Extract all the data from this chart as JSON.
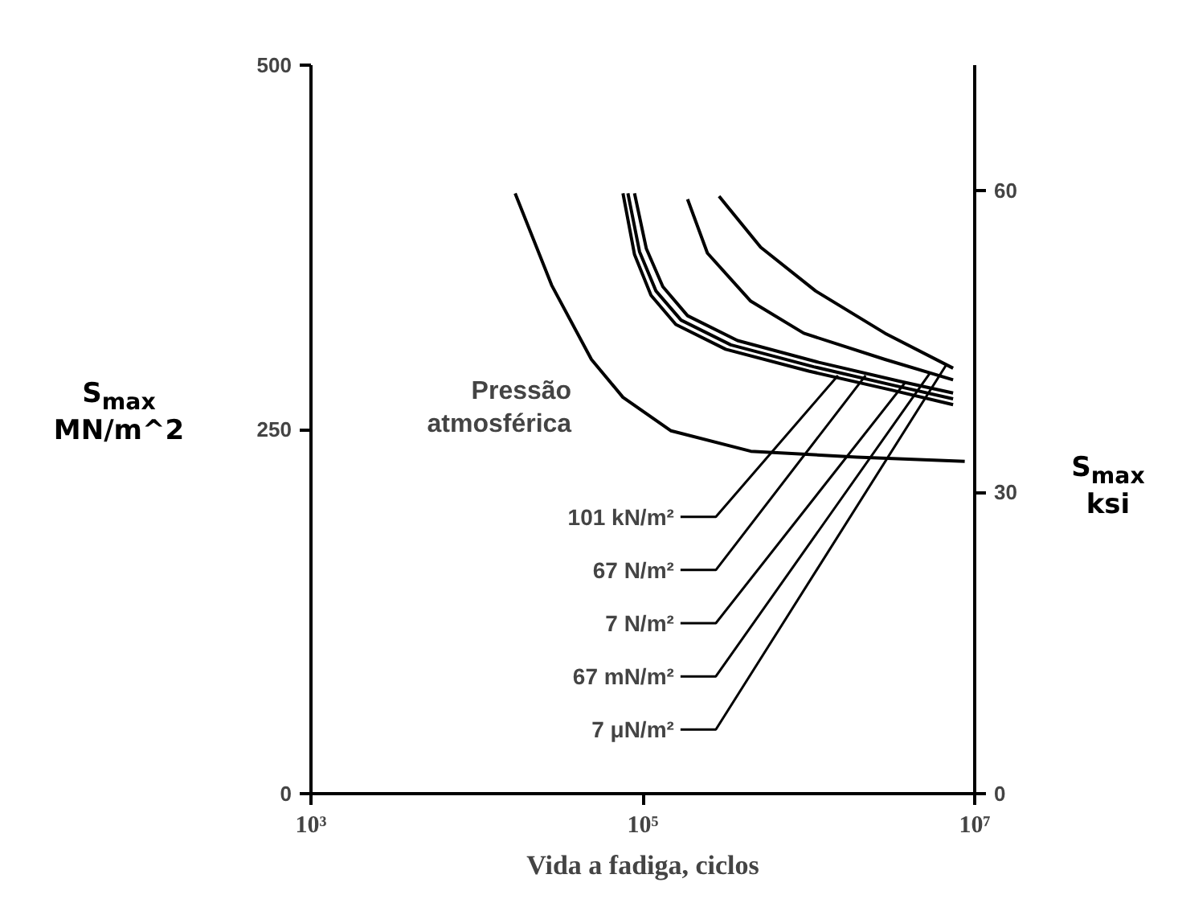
{
  "chart_data": {
    "type": "line",
    "xlabel": "Vida a fadiga, ciclos",
    "ylabel": "S$_{max}$ MN/m^2",
    "y2label": "S$_{max}$ ksi",
    "log": "x",
    "xlim": [
      1000,
      10000000
    ],
    "xticks": [
      {
        "value": 1000,
        "label": "10³"
      },
      {
        "value": 100000,
        "label": "10⁵"
      },
      {
        "value": 10000000,
        "label": "10⁷"
      }
    ],
    "ylim": [
      0,
      500
    ],
    "yticks": [
      0,
      250,
      500
    ],
    "y2lim": [
      0,
      72.5
    ],
    "y2ticks": [
      0,
      30,
      60
    ],
    "grid": false,
    "series": [
      {
        "name": "Pressão atmosférica",
        "color": "#000000",
        "x": [
          17000,
          28200,
          49000,
          75900,
          148000,
          447000,
          1950000,
          8710000
        ],
        "values": [
          412,
          349,
          298,
          272,
          249,
          235,
          231,
          228
        ]
      },
      {
        "color": "#000000",
        "x": [
          75900,
          89100,
          112000,
          158000,
          316000,
          1000000,
          3160000,
          7410000
        ],
        "values": [
          412,
          370,
          342,
          322,
          305,
          290,
          277,
          267
        ]
      },
      {
        "color": "#000000",
        "x": [
          81300,
          95500,
          120000,
          170000,
          339000,
          1070000,
          3310000,
          7410000
        ],
        "values": [
          412,
          372,
          345,
          325,
          308,
          293,
          280,
          271
        ]
      },
      {
        "color": "#000000",
        "x": [
          89100,
          105000,
          132000,
          186000,
          372000,
          1150000,
          3550000,
          7410000
        ],
        "values": [
          412,
          374,
          348,
          328,
          311,
          296,
          283,
          275
        ]
      },
      {
        "color": "#000000",
        "x": [
          186000,
          245000,
          447000,
          933000,
          2880000,
          7410000
        ],
        "values": [
          408,
          371,
          338,
          316,
          298,
          284
        ]
      },
      {
        "color": "#000000",
        "x": [
          288000,
          513000,
          1100000,
          2880000,
          7410000
        ],
        "values": [
          410,
          375,
          345,
          316,
          292
        ]
      }
    ],
    "annotations": [
      {
        "text": "101 kN/m²",
        "x": 1500000,
        "y": 287
      },
      {
        "text": "67 N/m²",
        "x": 2200000,
        "y": 287
      },
      {
        "text": "7 N/m²",
        "x": 3800000,
        "y": 282
      },
      {
        "text": "67 mN/m²",
        "x": 5400000,
        "y": 289
      },
      {
        "text": "7 μN/m²",
        "x": 6800000,
        "y": 295
      }
    ]
  }
}
